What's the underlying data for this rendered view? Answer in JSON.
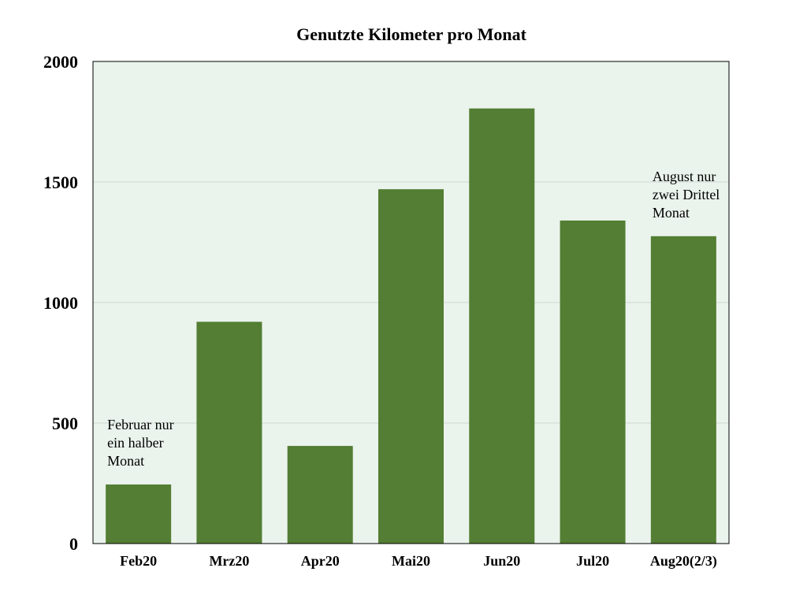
{
  "chart_data": {
    "type": "bar",
    "title": "Genutzte Kilometer pro Monat",
    "xlabel": "",
    "ylabel": "",
    "categories": [
      "Feb20",
      "Mrz20",
      "Apr20",
      "Mai20",
      "Jun20",
      "Jul20",
      "Aug20(2/3)"
    ],
    "values": [
      245,
      920,
      405,
      1470,
      1805,
      1340,
      1275
    ],
    "ylim": [
      0,
      2000
    ],
    "yticks": [
      "0",
      "500",
      "1000",
      "1500",
      "2000"
    ],
    "grid": true,
    "legend": "none",
    "annotations": [
      {
        "category": "Feb20",
        "lines": [
          "Februar nur",
          "ein halber",
          "Monat"
        ]
      },
      {
        "category": "Aug20(2/3)",
        "lines": [
          "August nur",
          "zwei Drittel",
          "Monat"
        ]
      }
    ],
    "colors": {
      "bar": "#537e33",
      "plot_background": "#eaf3ec",
      "grid": "#cfd8d0",
      "axis": "#000000"
    }
  }
}
